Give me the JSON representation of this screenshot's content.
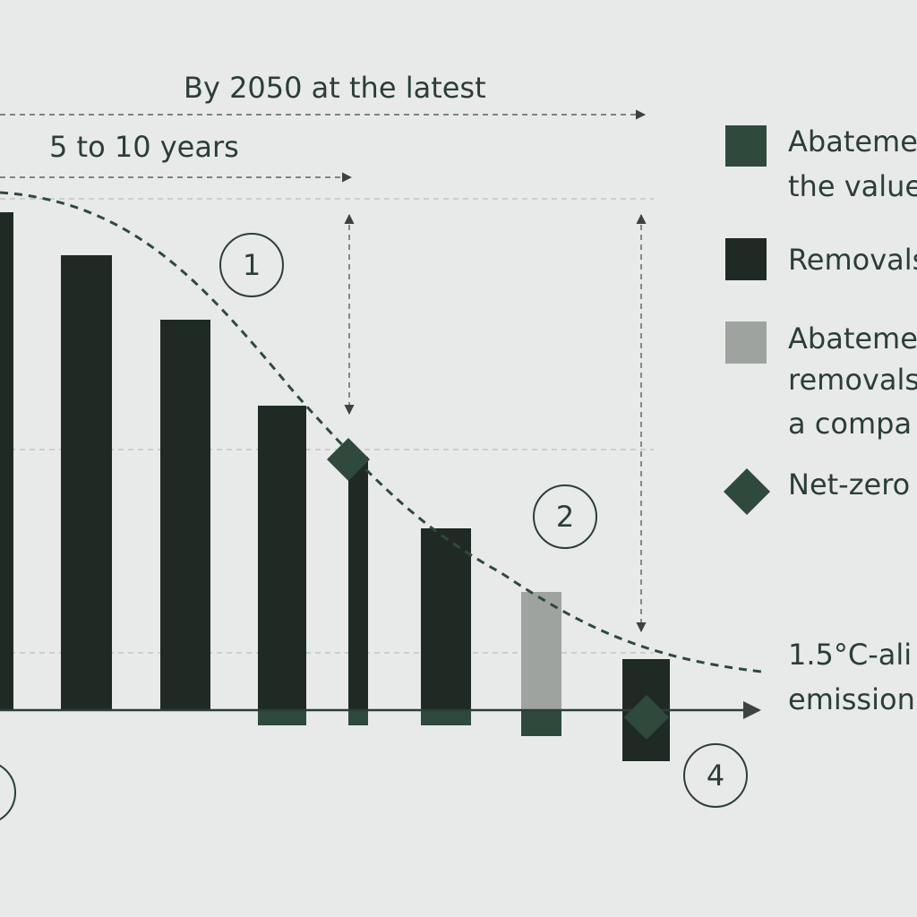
{
  "timeline": {
    "long_label": "By 2050 at the latest",
    "short_label": "5 to 10 years"
  },
  "markers": [
    "1",
    "2",
    "4"
  ],
  "legend": [
    {
      "lines": [
        "Abateme",
        "the value"
      ]
    },
    {
      "lines": [
        "Removals"
      ]
    },
    {
      "lines": [
        "Abateme",
        "removals",
        "a compa"
      ]
    },
    {
      "lines": [
        "Net-zero"
      ]
    }
  ],
  "curve_label": {
    "lines": [
      "1.5°C-ali",
      "emission"
    ]
  }
}
